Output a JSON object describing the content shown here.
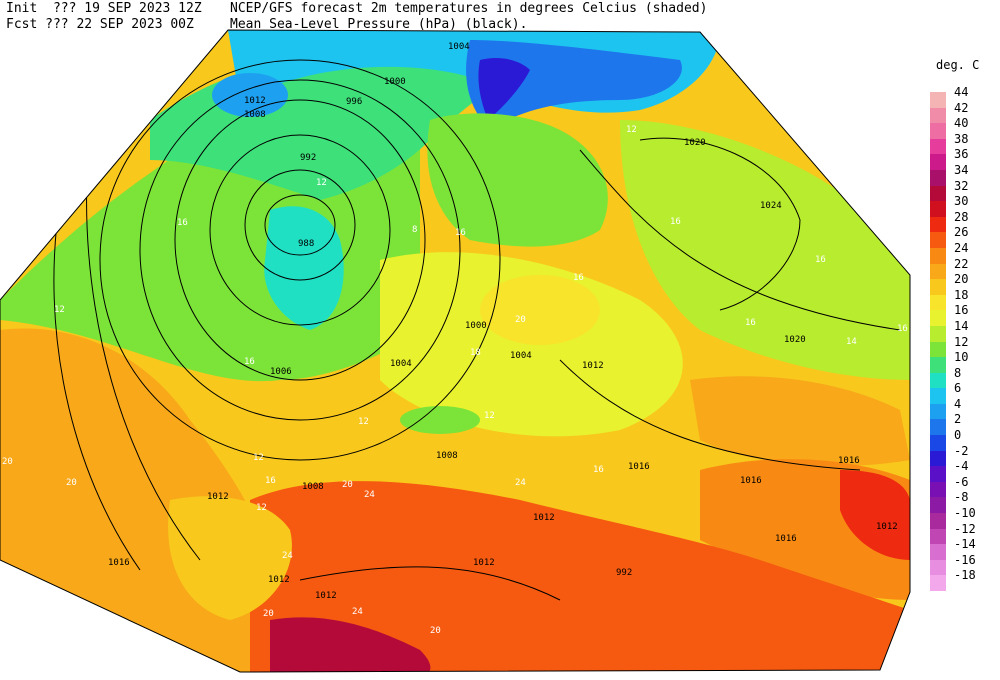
{
  "header": {
    "init_line": "Init  ??? 19 SEP 2023 12Z",
    "fcst_line": "Fcst ??? 22 SEP 2023 00Z",
    "title_line1": "NCEP/GFS forecast 2m temperatures in degrees Celcius (shaded)",
    "title_line2": "Mean Sea-Level Pressure (hPa) (black)."
  },
  "legend": {
    "title": "deg. C",
    "entries": [
      {
        "label": "44",
        "color": "#f4b4b4"
      },
      {
        "label": "42",
        "color": "#f08ca8"
      },
      {
        "label": "40",
        "color": "#ee6ea4"
      },
      {
        "label": "38",
        "color": "#e63c9c"
      },
      {
        "label": "36",
        "color": "#cc1a8a"
      },
      {
        "label": "34",
        "color": "#a8106a"
      },
      {
        "label": "32",
        "color": "#b40a3a"
      },
      {
        "label": "30",
        "color": "#d0101e"
      },
      {
        "label": "28",
        "color": "#ee2a10"
      },
      {
        "label": "26",
        "color": "#f65a10"
      },
      {
        "label": "24",
        "color": "#f88a14"
      },
      {
        "label": "22",
        "color": "#f8a818"
      },
      {
        "label": "20",
        "color": "#f8c81c"
      },
      {
        "label": "18",
        "color": "#f8e42a"
      },
      {
        "label": "16",
        "color": "#e8f22e"
      },
      {
        "label": "14",
        "color": "#b8ec2e"
      },
      {
        "label": "12",
        "color": "#7ce438"
      },
      {
        "label": "10",
        "color": "#3ee07a"
      },
      {
        "label": "8",
        "color": "#20e0c4"
      },
      {
        "label": "6",
        "color": "#1ec4f0"
      },
      {
        "label": "4",
        "color": "#1ea0f0"
      },
      {
        "label": "2",
        "color": "#1e76ec"
      },
      {
        "label": "0",
        "color": "#1a48e6"
      },
      {
        "label": "-2",
        "color": "#2a1ad6"
      },
      {
        "label": "-4",
        "color": "#5a10c6"
      },
      {
        "label": "-6",
        "color": "#7810b4"
      },
      {
        "label": "-8",
        "color": "#8c1aa4"
      },
      {
        "label": "-10",
        "color": "#a82a9c"
      },
      {
        "label": "-12",
        "color": "#c046b4"
      },
      {
        "label": "-14",
        "color": "#d86ed0"
      },
      {
        "label": "-16",
        "color": "#e88ee0"
      },
      {
        "label": "-18",
        "color": "#f4a8ec"
      }
    ]
  },
  "pressure_labels": [
    "1004",
    "1000",
    "996",
    "992",
    "988",
    "1012",
    "1008",
    "1020",
    "1024",
    "1004",
    "1000",
    "1004",
    "1006",
    "1008",
    "1012",
    "1016",
    "1016",
    "1016",
    "1012",
    "1012",
    "1016",
    "1012",
    "1012",
    "1012",
    "1008",
    "1012",
    "1016",
    "1020",
    "992"
  ],
  "temp_labels": [
    "16",
    "12",
    "8",
    "16",
    "12",
    "16",
    "16",
    "20",
    "18",
    "16",
    "16",
    "14",
    "12",
    "12",
    "16",
    "20",
    "24",
    "24",
    "20",
    "20",
    "24",
    "24",
    "20",
    "16",
    "12",
    "12",
    "12",
    "16",
    "16",
    "20"
  ]
}
